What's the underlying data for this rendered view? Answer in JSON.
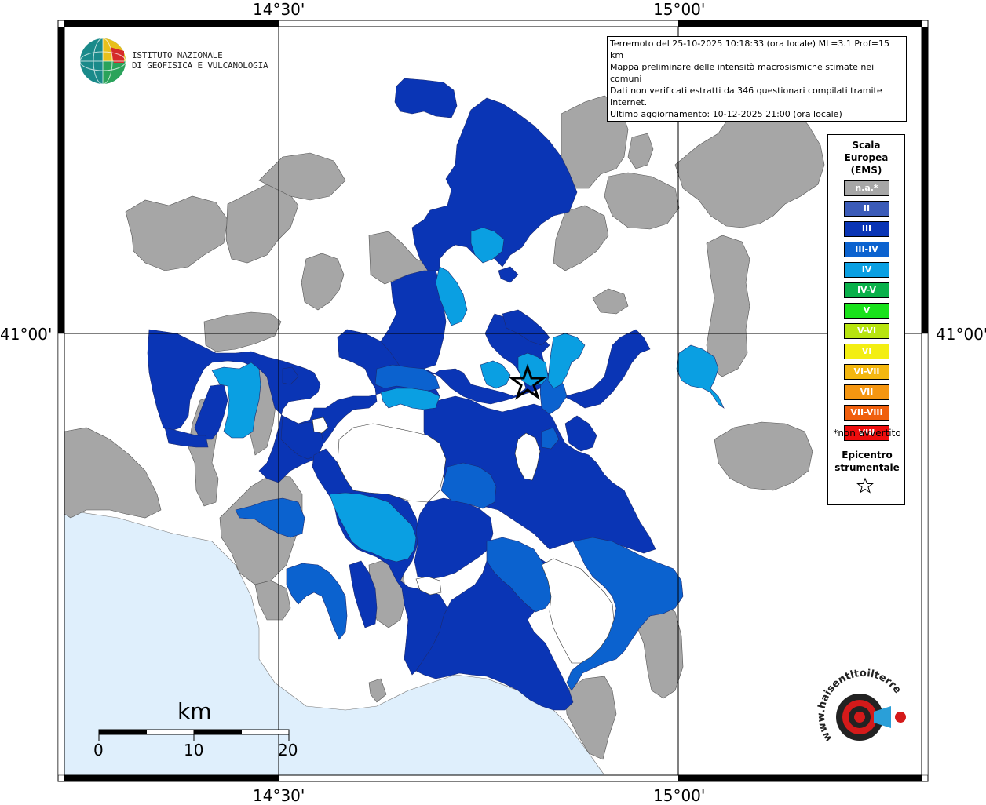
{
  "coords": {
    "lon_1": "14°30'",
    "lon_2": "15°00'",
    "lat_1": "41°00'"
  },
  "logo": {
    "line1": "ISTITUTO NAZIONALE",
    "line2": "DI GEOFISICA E VULCANOLOGIA"
  },
  "info": {
    "line1": "Terremoto del 25-10-2025 10:18:33 (ora locale) ML=3.1 Prof=15 km",
    "line2": "Mappa preliminare delle intensità macrosismiche stimate nei comuni",
    "line3": "Dati non verificati estratti da 346 questionari compilati tramite Internet.",
    "line4": "Ultimo aggiornamento: 10-12-2025 21:00 (ora locale)"
  },
  "legend": {
    "title_1": "Scala",
    "title_2": "Europea",
    "title_3": "(EMS)",
    "items": [
      {
        "label": "n.a.*",
        "color": "#a6a6a6"
      },
      {
        "label": "II",
        "color": "#3b5bb8"
      },
      {
        "label": "III",
        "color": "#0a35b5"
      },
      {
        "label": "III-IV",
        "color": "#0b62cf"
      },
      {
        "label": "IV",
        "color": "#0a9fe2"
      },
      {
        "label": "IV-V",
        "color": "#09b14a"
      },
      {
        "label": "V",
        "color": "#19e21b"
      },
      {
        "label": "V-VI",
        "color": "#b7e40f"
      },
      {
        "label": "VI",
        "color": "#f3ee12"
      },
      {
        "label": "VI-VII",
        "color": "#f4b70f"
      },
      {
        "label": "VII",
        "color": "#f59610"
      },
      {
        "label": "VII-VIII",
        "color": "#f05f0d"
      },
      {
        "label": "VIII",
        "color": "#ee0d0d"
      }
    ],
    "note": "*non avvertito",
    "epicenter_1": "Epicentro",
    "epicenter_2": "strumentale"
  },
  "scalebar": {
    "unit": "km",
    "tick_0": "0",
    "tick_10": "10",
    "tick_20": "20"
  },
  "watermark": {
    "text": "www.haisentitoilterremoto.it"
  },
  "colors": {
    "sea": "#dfeffc",
    "grey": "#a6a6a6",
    "ems_III": "#0a35b5",
    "ems_III_IV": "#0b62cf",
    "ems_IV": "#0a9fe2"
  }
}
